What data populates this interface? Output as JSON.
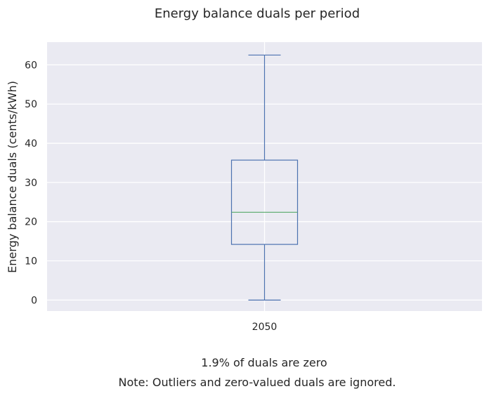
{
  "chart_data": {
    "type": "box",
    "title": "Energy balance duals per period",
    "xlabel": "",
    "ylabel": "Energy balance duals (cents/kWh)",
    "categories": [
      "2050"
    ],
    "boxes": [
      {
        "category": "2050",
        "whisker_low": 0,
        "q1": 14.2,
        "median": 22.4,
        "q3": 35.7,
        "whisker_high": 62.5
      }
    ],
    "yticks": [
      0,
      10,
      20,
      30,
      40,
      50,
      60
    ],
    "ylim": [
      -2.8,
      65.8
    ],
    "grid": true,
    "colors": {
      "background": "#eaeaf2",
      "box": "#4c72b0",
      "median": "#55a868",
      "grid": "#ffffff"
    }
  },
  "notes": [
    "1.9% of duals are zero",
    "Note: Outliers and zero-valued duals are ignored."
  ]
}
